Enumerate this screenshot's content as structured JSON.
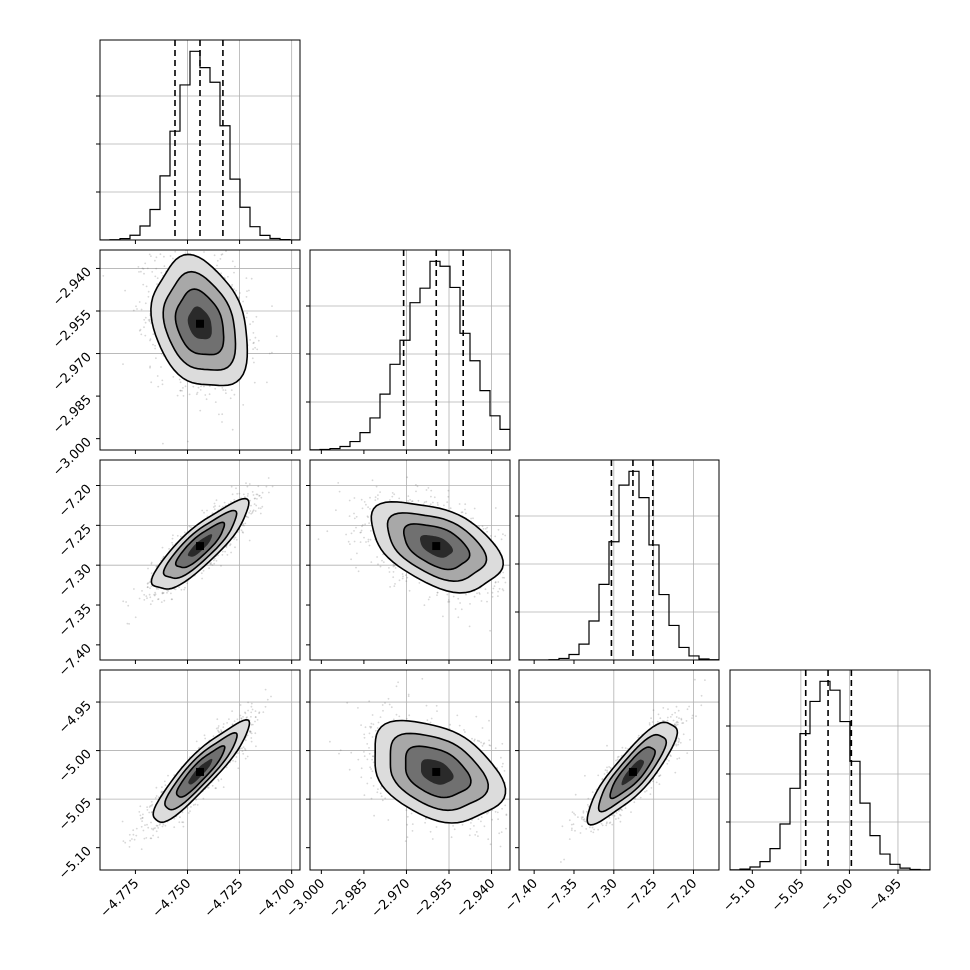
{
  "chart_data": {
    "type": "corner",
    "parameters": [
      {
        "center": -4.744,
        "sigma": 0.0115,
        "quantiles": [
          -4.756,
          -4.744,
          -4.733
        ],
        "range": [
          -4.792,
          -4.696
        ],
        "ticks": [
          -4.775,
          -4.75,
          -4.725,
          -4.7
        ],
        "tick_labels": [
          "−4.775",
          "−4.750",
          "−4.725",
          "−4.700"
        ],
        "grid": [
          -4.75,
          -4.725,
          -4.7
        ]
      },
      {
        "center": -2.9595,
        "sigma": 0.0115,
        "quantiles": [
          -2.971,
          -2.9595,
          -2.95
        ],
        "range": [
          -3.004,
          -2.9335
        ],
        "ticks": [
          -3.0,
          -2.985,
          -2.97,
          -2.955,
          -2.94
        ],
        "tick_labels": [
          "−3.000",
          "−2.985",
          "−2.970",
          "−2.955",
          "−2.940"
        ],
        "grid": [
          -2.97,
          -2.955,
          -2.94
        ]
      },
      {
        "center": -7.276,
        "sigma": 0.028,
        "quantiles": [
          -7.303,
          -7.276,
          -7.251
        ],
        "range": [
          -7.419,
          -7.168
        ],
        "ticks": [
          -7.4,
          -7.35,
          -7.3,
          -7.25,
          -7.2
        ],
        "tick_labels": [
          "−7.40",
          "−7.35",
          "−7.30",
          "−7.25",
          "−7.20"
        ],
        "grid": [
          -7.3,
          -7.25,
          -7.2
        ]
      },
      {
        "center": -5.022,
        "sigma": 0.026,
        "quantiles": [
          -5.045,
          -5.022,
          -4.998
        ],
        "range": [
          -5.123,
          -4.917
        ],
        "ticks": [
          -5.1,
          -5.05,
          -5.0,
          -4.95
        ],
        "tick_labels": [
          "−5.10",
          "−5.05",
          "−5.00",
          "−4.95"
        ],
        "grid": [
          -5.05,
          -5.0,
          -4.95
        ]
      }
    ],
    "correlations": [
      [
        1,
        -0.25,
        0.85,
        0.9
      ],
      [
        -0.25,
        1,
        -0.45,
        -0.35
      ],
      [
        0.85,
        -0.45,
        1,
        0.85
      ],
      [
        0.9,
        -0.35,
        0.85,
        1
      ]
    ],
    "contour_levels_sigma": [
      0.5,
      1.0,
      1.5,
      2.0
    ],
    "histogram_bins": 20,
    "title": "",
    "axis_labels": [],
    "grid": true
  }
}
